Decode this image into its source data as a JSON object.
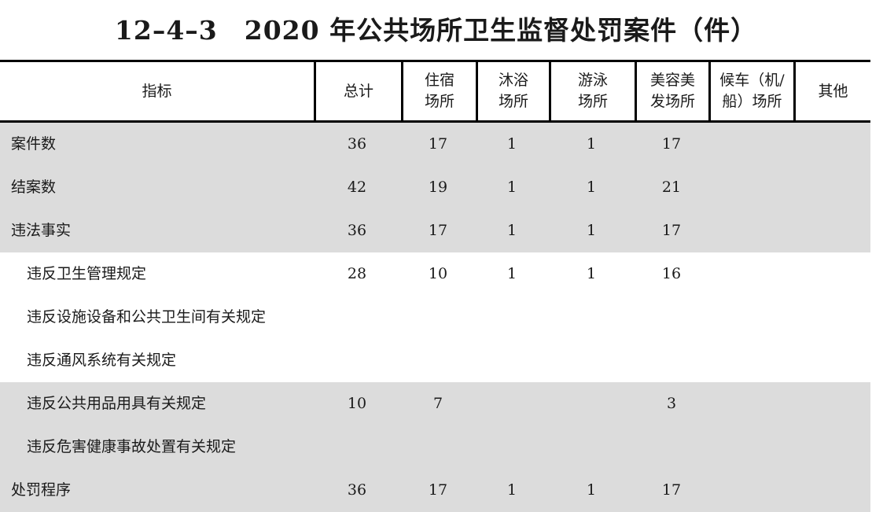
{
  "title": {
    "number": "12–4–3",
    "text": "2020 年公共场所卫生监督处罚案件（件）"
  },
  "columns": [
    {
      "label1": "指标",
      "label2": ""
    },
    {
      "label1": "总计",
      "label2": ""
    },
    {
      "label1": "住宿",
      "label2": "场所"
    },
    {
      "label1": "沐浴",
      "label2": "场所"
    },
    {
      "label1": "游泳",
      "label2": "场所"
    },
    {
      "label1": "美容美",
      "label2": "发场所"
    },
    {
      "label1": "候车（机/",
      "label2": "船）场所"
    },
    {
      "label1": "其他",
      "label2": ""
    }
  ],
  "rows": [
    {
      "label": "案件数",
      "indent": false,
      "shade": true,
      "total": "36",
      "lodging": "17",
      "bath": "1",
      "swim": "1",
      "beauty": "17",
      "transit": "",
      "other": ""
    },
    {
      "label": "结案数",
      "indent": false,
      "shade": true,
      "total": "42",
      "lodging": "19",
      "bath": "1",
      "swim": "1",
      "beauty": "21",
      "transit": "",
      "other": ""
    },
    {
      "label": "违法事实",
      "indent": false,
      "shade": true,
      "total": "36",
      "lodging": "17",
      "bath": "1",
      "swim": "1",
      "beauty": "17",
      "transit": "",
      "other": ""
    },
    {
      "label": "违反卫生管理规定",
      "indent": true,
      "shade": false,
      "total": "28",
      "lodging": "10",
      "bath": "1",
      "swim": "1",
      "beauty": "16",
      "transit": "",
      "other": ""
    },
    {
      "label": "违反设施设备和公共卫生间有关规定",
      "indent": true,
      "shade": false,
      "total": "",
      "lodging": "",
      "bath": "",
      "swim": "",
      "beauty": "",
      "transit": "",
      "other": ""
    },
    {
      "label": "违反通风系统有关规定",
      "indent": true,
      "shade": false,
      "total": "",
      "lodging": "",
      "bath": "",
      "swim": "",
      "beauty": "",
      "transit": "",
      "other": ""
    },
    {
      "label": "违反公共用品用具有关规定",
      "indent": true,
      "shade": true,
      "total": "10",
      "lodging": "7",
      "bath": "",
      "swim": "",
      "beauty": "3",
      "transit": "",
      "other": ""
    },
    {
      "label": "违反危害健康事故处置有关规定",
      "indent": true,
      "shade": true,
      "total": "",
      "lodging": "",
      "bath": "",
      "swim": "",
      "beauty": "",
      "transit": "",
      "other": ""
    },
    {
      "label": "处罚程序",
      "indent": false,
      "shade": true,
      "total": "36",
      "lodging": "17",
      "bath": "1",
      "swim": "1",
      "beauty": "17",
      "transit": "",
      "other": ""
    }
  ]
}
